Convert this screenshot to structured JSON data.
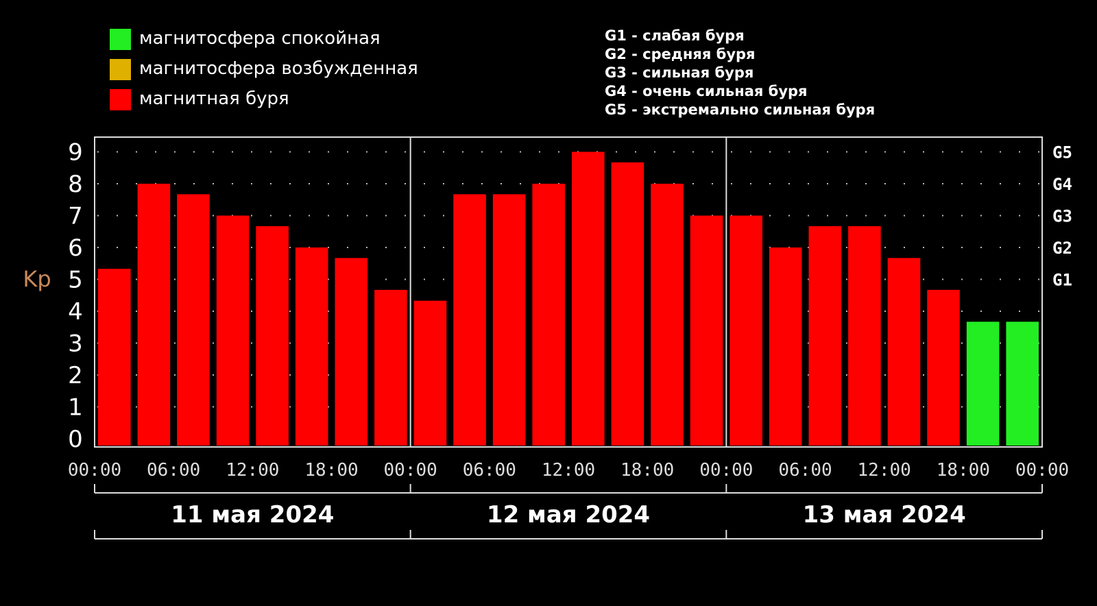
{
  "legend": [
    {
      "label": "магнитосфера спокойная",
      "color": "#22ee22"
    },
    {
      "label": "магнитосфера возбужденная",
      "color": "#e0b000"
    },
    {
      "label": "магнитная буря",
      "color": "#ff0000"
    }
  ],
  "g_scale": [
    "G1 - слабая буря",
    "G2 - средняя буря",
    "G3 - сильная буря",
    "G4 - очень сильная буря",
    "G5 - экстремально сильная буря"
  ],
  "chart_data": {
    "type": "bar",
    "ylabel": "Kp",
    "ylim": [
      0,
      9
    ],
    "y_ticks": [
      "0",
      "1",
      "2",
      "3",
      "4",
      "5",
      "6",
      "7",
      "8",
      "9"
    ],
    "right_ticks": [
      {
        "value": 5,
        "label": "G1"
      },
      {
        "value": 6,
        "label": "G2"
      },
      {
        "value": 7,
        "label": "G3"
      },
      {
        "value": 8,
        "label": "G4"
      },
      {
        "value": 9,
        "label": "G5"
      }
    ],
    "x_tick_labels": [
      "00:00",
      "06:00",
      "12:00",
      "18:00",
      "00:00",
      "06:00",
      "12:00",
      "18:00",
      "00:00",
      "06:00",
      "12:00",
      "18:00",
      "00:00"
    ],
    "days": [
      "11 мая 2024",
      "12 мая 2024",
      "13 мая 2024"
    ],
    "grid": true,
    "values": [
      5.33,
      8.0,
      7.67,
      7.0,
      6.67,
      6.0,
      5.67,
      4.67,
      4.33,
      7.67,
      7.67,
      8.0,
      9.0,
      8.67,
      8.0,
      7.0,
      7.0,
      6.0,
      6.67,
      6.67,
      5.67,
      4.67,
      3.67,
      3.67
    ],
    "levels": [
      "storm",
      "storm",
      "storm",
      "storm",
      "storm",
      "storm",
      "storm",
      "storm",
      "storm",
      "storm",
      "storm",
      "storm",
      "storm",
      "storm",
      "storm",
      "storm",
      "storm",
      "storm",
      "storm",
      "storm",
      "storm",
      "storm",
      "quiet",
      "quiet"
    ],
    "colors": {
      "quiet": "#22ee22",
      "active": "#e0b000",
      "storm": "#ff0000"
    }
  }
}
